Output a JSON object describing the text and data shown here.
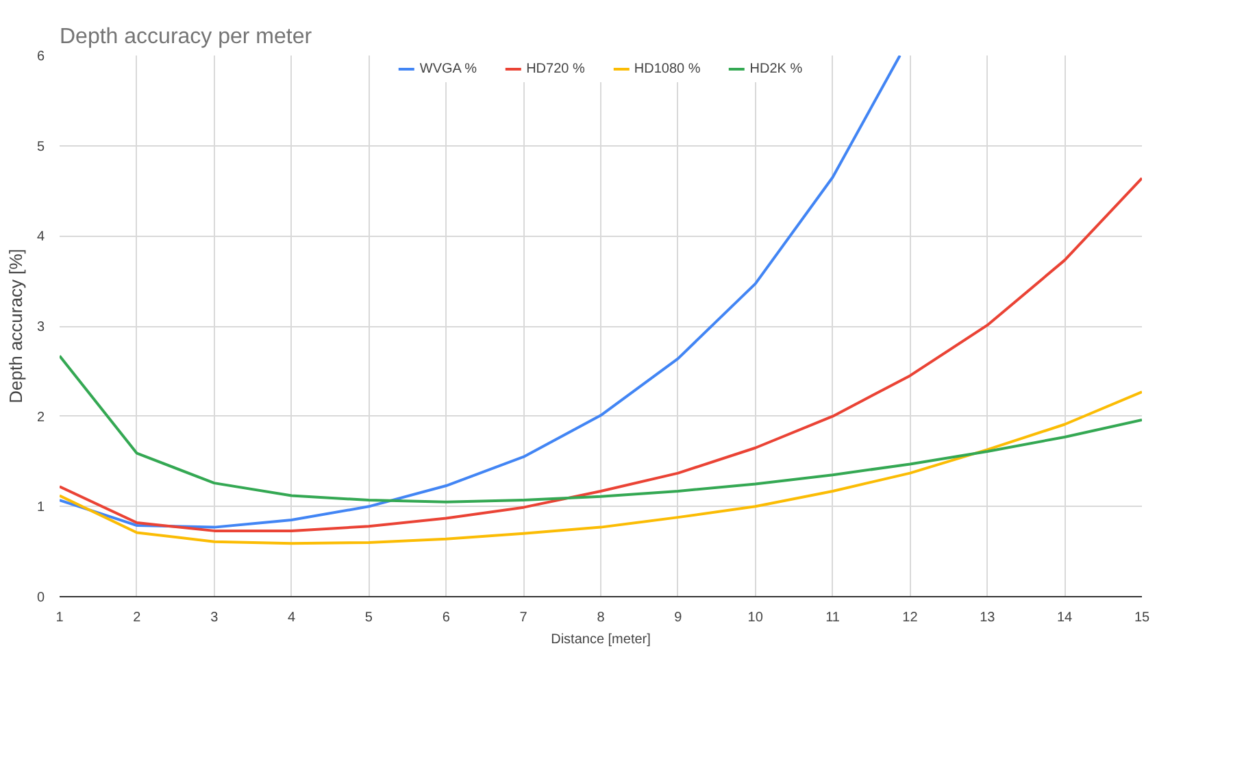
{
  "chart_data": {
    "type": "line",
    "title": "Depth accuracy per meter",
    "xlabel": "Distance [meter]",
    "ylabel": "Depth accuracy [%]",
    "x": [
      1,
      2,
      3,
      4,
      5,
      6,
      7,
      8,
      9,
      10,
      11,
      12,
      13,
      14,
      15
    ],
    "series": [
      {
        "name": "WVGA %",
        "color": "#4285f4",
        "x": [
          1,
          2,
          3,
          4,
          5,
          6,
          7,
          8,
          9,
          10,
          11,
          11.87
        ],
        "values": [
          1.07,
          0.79,
          0.77,
          0.85,
          1.0,
          1.23,
          1.55,
          2.01,
          2.64,
          3.47,
          4.65,
          6.0
        ]
      },
      {
        "name": "HD720 %",
        "color": "#ea4335",
        "values": [
          1.22,
          0.82,
          0.73,
          0.73,
          0.78,
          0.87,
          0.99,
          1.17,
          1.37,
          1.65,
          2.0,
          2.45,
          3.01,
          3.73,
          4.64
        ]
      },
      {
        "name": "HD1080 %",
        "color": "#fbbc04",
        "values": [
          1.12,
          0.71,
          0.61,
          0.59,
          0.6,
          0.64,
          0.7,
          0.77,
          0.88,
          1.0,
          1.17,
          1.37,
          1.63,
          1.91,
          2.27
        ]
      },
      {
        "name": "HD2K %",
        "color": "#34a853",
        "values": [
          2.67,
          1.59,
          1.26,
          1.12,
          1.07,
          1.05,
          1.07,
          1.11,
          1.17,
          1.25,
          1.35,
          1.47,
          1.61,
          1.77,
          1.96
        ]
      }
    ],
    "xlim": [
      1,
      15
    ],
    "xticks": [
      1,
      2,
      3,
      4,
      5,
      6,
      7,
      8,
      9,
      10,
      11,
      12,
      13,
      14,
      15
    ],
    "ylim": [
      0,
      6
    ],
    "yticks": [
      0,
      1,
      2,
      3,
      4,
      5,
      6
    ],
    "grid": true,
    "legend": "top",
    "marker": "none",
    "line_style": "solid"
  }
}
